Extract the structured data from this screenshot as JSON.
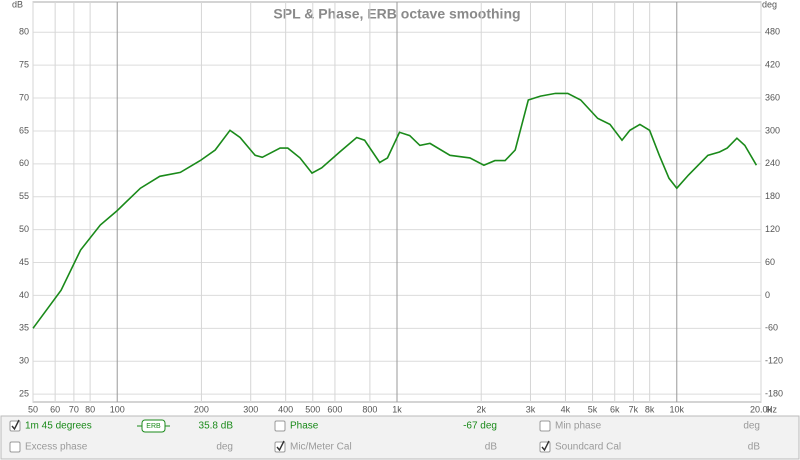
{
  "chart_data": {
    "type": "line",
    "title": "SPL & Phase, ERB octave smoothing",
    "y_label": "dB",
    "y2_label": "deg",
    "x_label": "Hz",
    "log_x": true,
    "grid": true,
    "xlim": [
      50,
      20000
    ],
    "xticks": [
      50,
      60,
      70,
      80,
      100,
      200,
      300,
      400,
      500,
      600,
      800,
      {
        "value": 1000,
        "label": "1k"
      },
      {
        "value": 2000,
        "label": "2k"
      },
      {
        "value": 3000,
        "label": "3k"
      },
      {
        "value": 4000,
        "label": "4k"
      },
      {
        "value": 5000,
        "label": "5k"
      },
      {
        "value": 6000,
        "label": "6k"
      },
      {
        "value": 7000,
        "label": "7k"
      },
      {
        "value": 8000,
        "label": "8k"
      },
      {
        "value": 10000,
        "label": "10k"
      },
      {
        "value": 20000,
        "label": "20.0k"
      }
    ],
    "ylim": [
      23.8,
      84.6
    ],
    "yticks": [
      25,
      30,
      35,
      40,
      45,
      50,
      55,
      60,
      65,
      70,
      75,
      80
    ],
    "y2lim": [
      -194.4,
      535.2
    ],
    "y2ticks": [
      -180,
      -120,
      -60,
      0,
      60,
      120,
      180,
      240,
      300,
      360,
      420,
      480
    ],
    "x": [
      50,
      63,
      74,
      87,
      100,
      121,
      142,
      168,
      198,
      224,
      253,
      275,
      311,
      330,
      382,
      407,
      450,
      497,
      538,
      624,
      718,
      766,
      867,
      925,
      1021,
      1110,
      1207,
      1312,
      1547,
      1822,
      2045,
      2239,
      2434,
      2646,
      2947,
      3258,
      3685,
      4077,
      4534,
      5217,
      5773,
      6370,
      6800,
      7380,
      7994,
      8660,
      9382,
      10000,
      11010,
      11930,
      12920,
      14210,
      15140,
      16400,
      17500,
      19250
    ],
    "series": [
      {
        "name": "1m 45 degrees",
        "color": "#1a8a1a",
        "values": [
          35.0,
          40.8,
          46.9,
          50.7,
          52.9,
          56.3,
          58.1,
          58.7,
          60.5,
          62.1,
          65.1,
          64.0,
          61.3,
          61.0,
          62.4,
          62.4,
          60.9,
          58.6,
          59.4,
          61.8,
          64.0,
          63.6,
          60.2,
          60.9,
          64.8,
          64.3,
          62.8,
          63.1,
          61.3,
          60.9,
          59.8,
          60.5,
          60.5,
          62.1,
          69.7,
          70.3,
          70.7,
          70.7,
          69.7,
          66.9,
          66.0,
          63.6,
          65.1,
          66.0,
          65.1,
          61.3,
          57.8,
          56.3,
          58.3,
          59.8,
          61.3,
          61.8,
          62.4,
          63.9,
          62.8,
          59.8
        ]
      }
    ]
  },
  "legend": {
    "series_checked": true,
    "badge": "ERB",
    "readout": "35.8 dB",
    "controls": [
      {
        "label": "Phase",
        "checked": false,
        "readout": "-67 deg",
        "active": true
      },
      {
        "label": "Min phase",
        "checked": false,
        "readout": "deg",
        "active": false
      },
      {
        "label": "Excess phase",
        "checked": false,
        "readout": "deg",
        "active": false
      },
      {
        "label": "Mic/Meter Cal",
        "checked": true,
        "readout": "dB",
        "active": false
      },
      {
        "label": "Soundcard Cal",
        "checked": true,
        "readout": "dB",
        "active": false
      }
    ]
  }
}
